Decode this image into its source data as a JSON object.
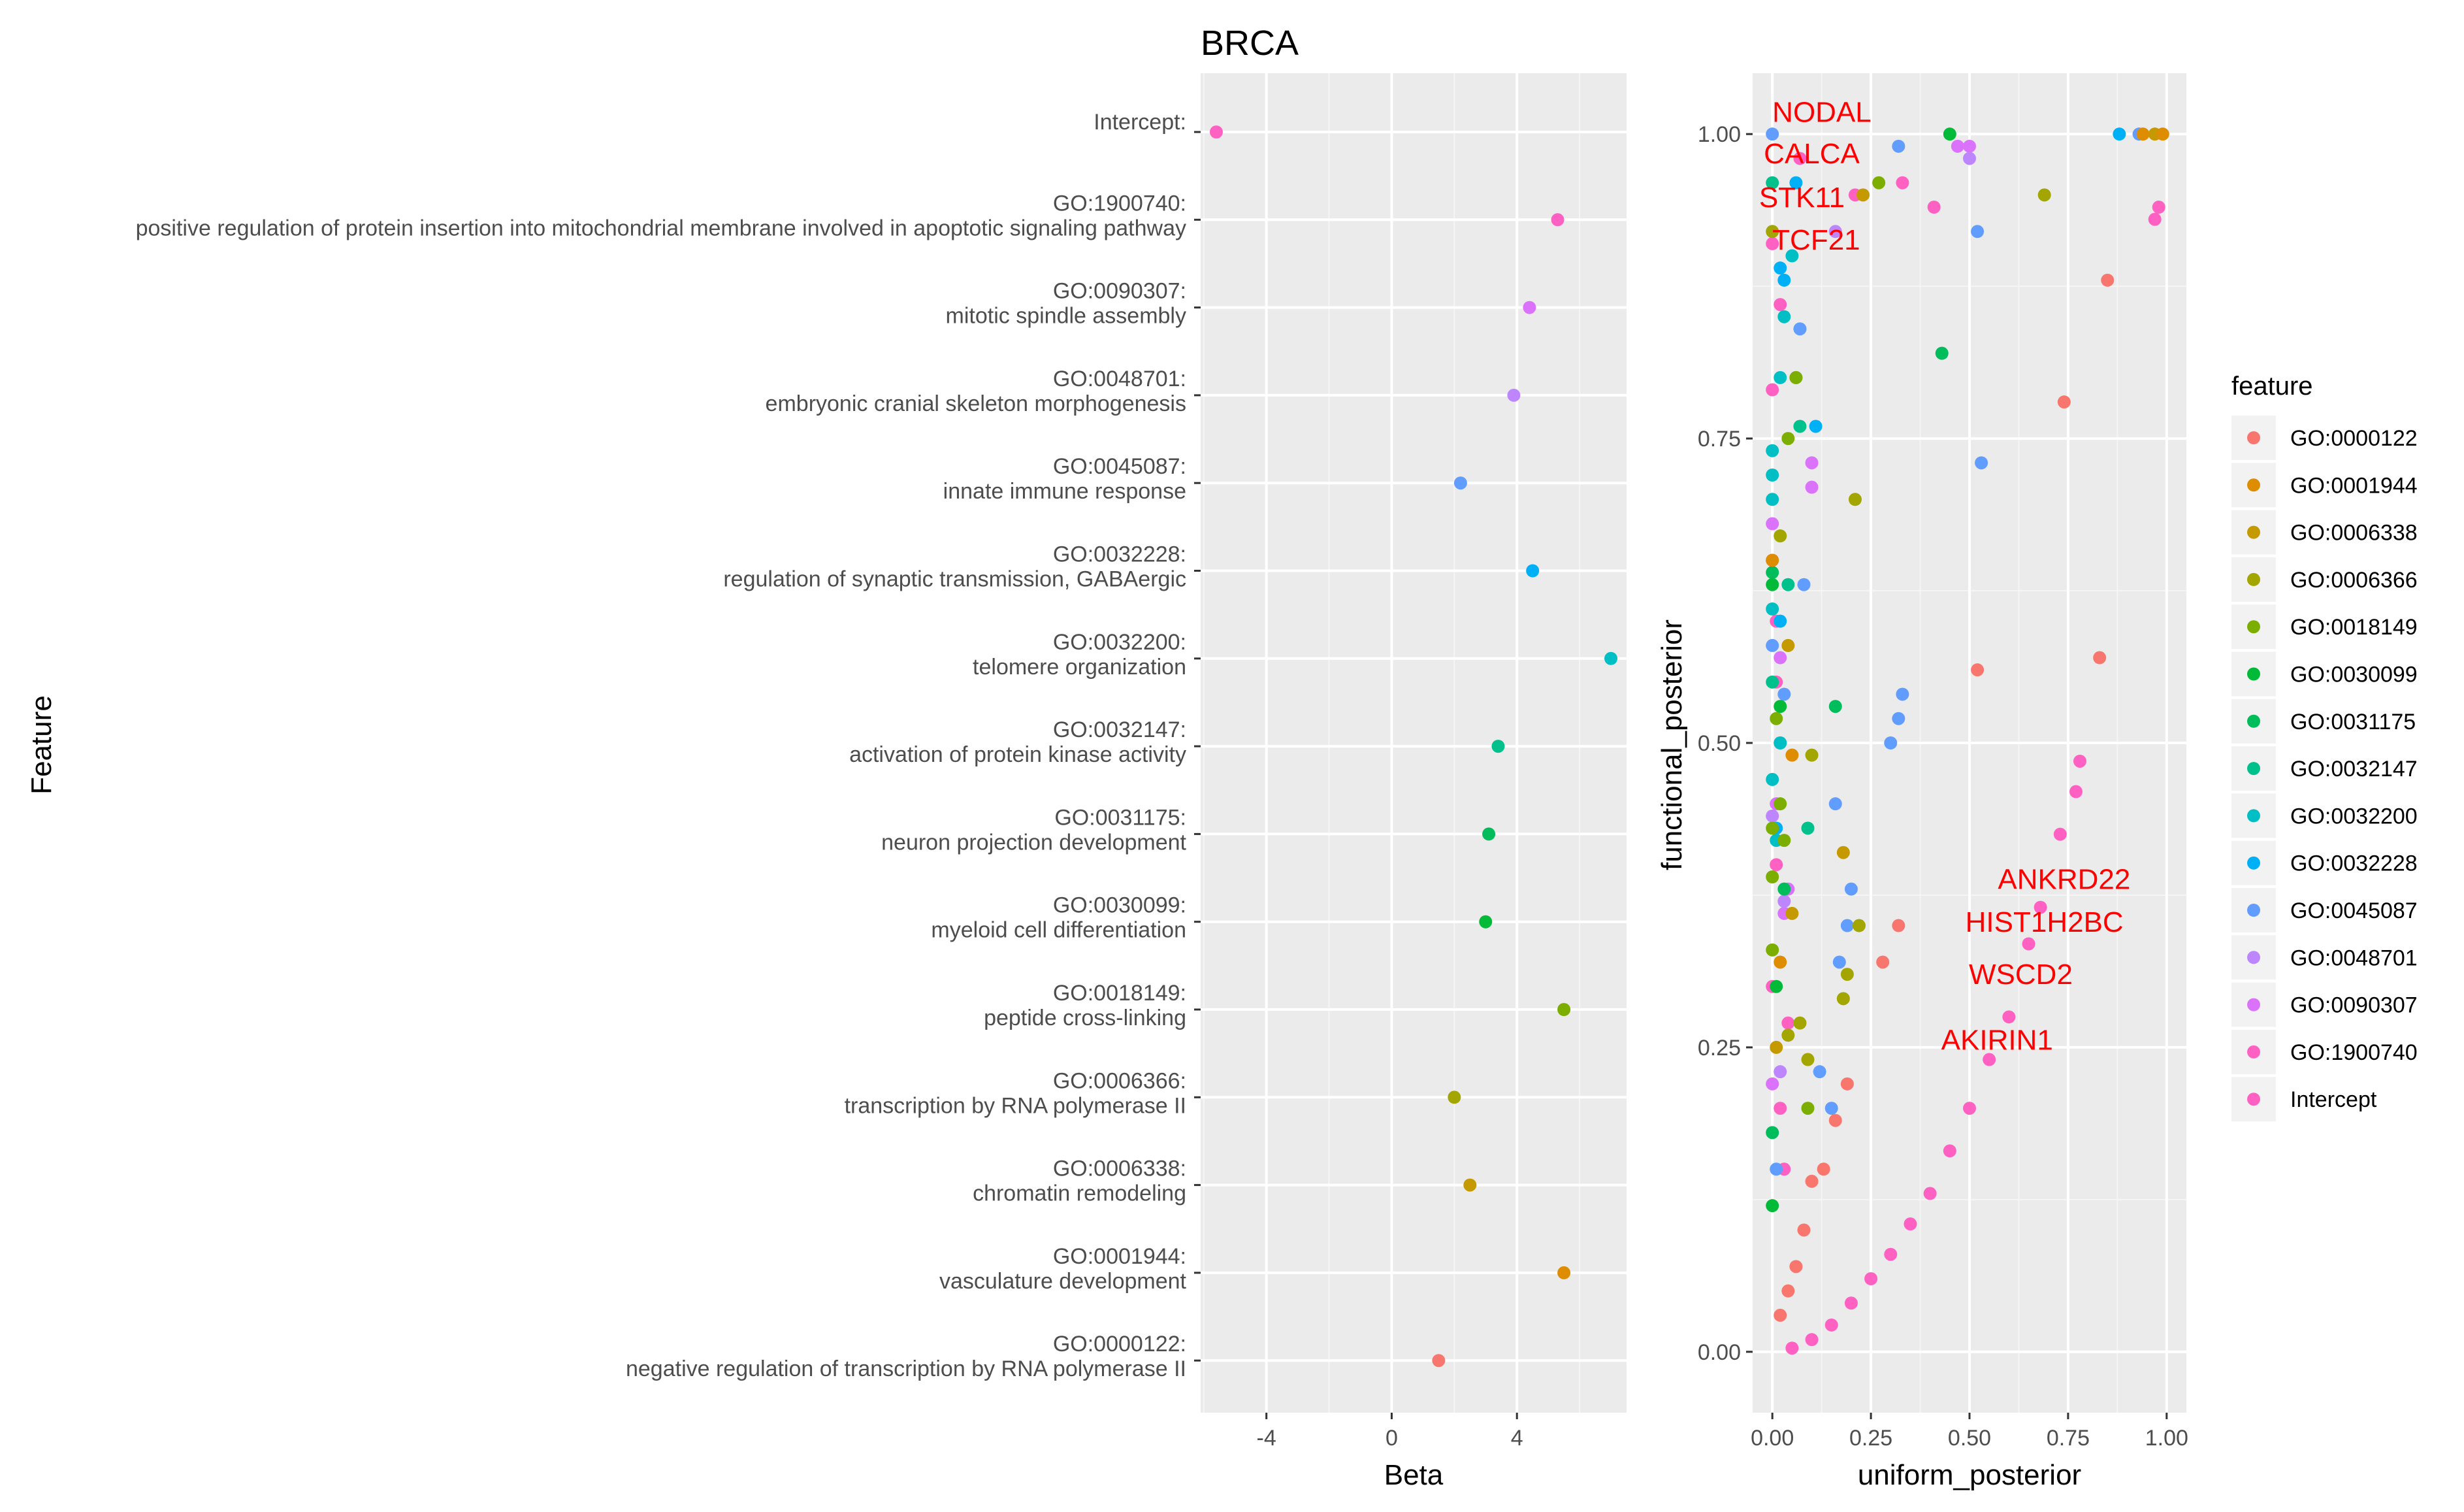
{
  "chart_data": [
    {
      "type": "scatter",
      "title": "BRCA",
      "xlabel": "Beta",
      "ylabel": "Feature",
      "xlim": [
        -6.1,
        7.5
      ],
      "x_ticks": [
        "-4",
        "0",
        "4"
      ],
      "features": [
        {
          "id": "Intercept:",
          "description": "",
          "beta": -5.6,
          "color": "#FF61C3"
        },
        {
          "id": "GO:1900740:",
          "description": "positive regulation of protein insertion into mitochondrial membrane involved in apoptotic signaling pathway",
          "beta": 5.3,
          "color": "#FF61C3"
        },
        {
          "id": "GO:0090307:",
          "description": "mitotic spindle assembly",
          "beta": 4.4,
          "color": "#DB72FB"
        },
        {
          "id": "GO:0048701:",
          "description": "embryonic cranial skeleton morphogenesis",
          "beta": 3.9,
          "color": "#BD86FF"
        },
        {
          "id": "GO:0045087:",
          "description": "innate immune response",
          "beta": 2.2,
          "color": "#619CFF"
        },
        {
          "id": "GO:0032228:",
          "description": "regulation of synaptic transmission, GABAergic",
          "beta": 4.5,
          "color": "#00B0F6"
        },
        {
          "id": "GO:0032200:",
          "description": "telomere organization",
          "beta": 7.0,
          "color": "#00BFC4"
        },
        {
          "id": "GO:0032147:",
          "description": "activation of protein kinase activity",
          "beta": 3.4,
          "color": "#00C08B"
        },
        {
          "id": "GO:0031175:",
          "description": "neuron projection development",
          "beta": 3.1,
          "color": "#00BD5C"
        },
        {
          "id": "GO:0030099:",
          "description": "myeloid cell differentiation",
          "beta": 3.0,
          "color": "#00BA38"
        },
        {
          "id": "GO:0018149:",
          "description": "peptide cross-linking",
          "beta": 5.5,
          "color": "#7CAE00"
        },
        {
          "id": "GO:0006366:",
          "description": "transcription by RNA polymerase II",
          "beta": 2.0,
          "color": "#A3A500"
        },
        {
          "id": "GO:0006338:",
          "description": "chromatin remodeling",
          "beta": 2.5,
          "color": "#C49A00"
        },
        {
          "id": "GO:0001944:",
          "description": "vasculature development",
          "beta": 5.5,
          "color": "#DE8C00"
        },
        {
          "id": "GO:0000122:",
          "description": "negative regulation of transcription by RNA polymerase II",
          "beta": 1.5,
          "color": "#F8766D"
        }
      ]
    },
    {
      "type": "scatter",
      "xlabel": "uniform_posterior",
      "ylabel": "functional_posterior",
      "xlim": [
        -0.05,
        1.05
      ],
      "ylim": [
        -0.05,
        1.05
      ],
      "x_ticks": [
        "0.00",
        "0.25",
        "0.50",
        "0.75",
        "1.00"
      ],
      "y_ticks": [
        "0.00",
        "0.25",
        "0.50",
        "0.75",
        "1.00"
      ],
      "legend": {
        "title": "feature",
        "position": "right",
        "items": [
          {
            "label": "GO:0000122",
            "color": "#F8766D"
          },
          {
            "label": "GO:0001944",
            "color": "#DE8C00"
          },
          {
            "label": "GO:0006338",
            "color": "#C49A00"
          },
          {
            "label": "GO:0006366",
            "color": "#A3A500"
          },
          {
            "label": "GO:0018149",
            "color": "#7CAE00"
          },
          {
            "label": "GO:0030099",
            "color": "#00BA38"
          },
          {
            "label": "GO:0031175",
            "color": "#00BD5C"
          },
          {
            "label": "GO:0032147",
            "color": "#00C08B"
          },
          {
            "label": "GO:0032200",
            "color": "#00BFC4"
          },
          {
            "label": "GO:0032228",
            "color": "#00B0F6"
          },
          {
            "label": "GO:0045087",
            "color": "#619CFF"
          },
          {
            "label": "GO:0048701",
            "color": "#BD86FF"
          },
          {
            "label": "GO:0090307",
            "color": "#DB72FB"
          },
          {
            "label": "GO:1900740",
            "color": "#FF61C3"
          },
          {
            "label": "Intercept",
            "color": "#FF61C3"
          }
        ]
      },
      "annotations": [
        {
          "text": "NODAL",
          "x": 0.0,
          "y": 1.01
        },
        {
          "text": "CALCA",
          "x": 0.1,
          "y": 0.976
        },
        {
          "text": "STK11",
          "x": 0.075,
          "y": 0.94
        },
        {
          "text": "TCF21",
          "x": 0.0,
          "y": 0.905
        },
        {
          "text": "ANKRD22",
          "x": 0.74,
          "y": 0.38
        },
        {
          "text": "HIST1H2BC",
          "x": 0.69,
          "y": 0.345
        },
        {
          "text": "WSCD2",
          "x": 0.63,
          "y": 0.302
        },
        {
          "text": "AKIRIN1",
          "x": 0.57,
          "y": 0.248
        }
      ],
      "points": [
        {
          "f": "Intercept",
          "pts": [
            [
              0.05,
              0.003
            ],
            [
              0.1,
              0.01
            ],
            [
              0.15,
              0.022
            ],
            [
              0.2,
              0.04
            ],
            [
              0.25,
              0.06
            ],
            [
              0.3,
              0.08
            ],
            [
              0.35,
              0.105
            ],
            [
              0.4,
              0.13
            ],
            [
              0.45,
              0.165
            ],
            [
              0.5,
              0.2
            ],
            [
              0.55,
              0.24
            ],
            [
              0.6,
              0.275
            ],
            [
              0.65,
              0.335
            ],
            [
              0.68,
              0.365
            ],
            [
              0.73,
              0.425
            ],
            [
              0.77,
              0.46
            ],
            [
              0.78,
              0.485
            ]
          ]
        },
        {
          "f": "GO:1900740",
          "pts": [
            [
              0.97,
              0.93
            ],
            [
              0.98,
              0.94
            ],
            [
              0.21,
              0.95
            ],
            [
              0.33,
              0.96
            ],
            [
              0.41,
              0.94
            ],
            [
              0.07,
              0.98
            ],
            [
              0.0,
              0.91
            ],
            [
              0.02,
              0.86
            ],
            [
              0.0,
              0.79
            ],
            [
              0.01,
              0.6
            ],
            [
              0.02,
              0.5
            ],
            [
              0.01,
              0.4
            ],
            [
              0.0,
              0.3
            ],
            [
              0.02,
              0.2
            ],
            [
              0.04,
              0.27
            ],
            [
              0.0,
              0.65
            ],
            [
              0.03,
              0.15
            ],
            [
              0.01,
              0.55
            ]
          ]
        },
        {
          "f": "GO:0090307",
          "pts": [
            [
              0.47,
              0.99
            ],
            [
              0.5,
              0.99
            ],
            [
              0.0,
              0.68
            ],
            [
              0.1,
              0.73
            ],
            [
              0.1,
              0.71
            ],
            [
              0.02,
              0.57
            ],
            [
              0.04,
              0.38
            ],
            [
              0.01,
              0.45
            ],
            [
              0.03,
              0.36
            ],
            [
              0.0,
              0.22
            ]
          ]
        },
        {
          "f": "GO:0048701",
          "pts": [
            [
              0.5,
              0.98
            ],
            [
              0.16,
              0.92
            ],
            [
              0.03,
              0.37
            ],
            [
              0.0,
              0.44
            ],
            [
              0.02,
              0.23
            ]
          ]
        },
        {
          "f": "GO:0045087",
          "pts": [
            [
              0.93,
              1.0
            ],
            [
              0.52,
              0.92
            ],
            [
              0.53,
              0.73
            ],
            [
              0.33,
              0.54
            ],
            [
              0.32,
              0.52
            ],
            [
              0.3,
              0.5
            ],
            [
              0.0,
              1.0
            ],
            [
              0.32,
              0.99
            ],
            [
              0.06,
              0.8
            ],
            [
              0.07,
              0.84
            ],
            [
              0.16,
              0.45
            ],
            [
              0.19,
              0.35
            ],
            [
              0.17,
              0.32
            ],
            [
              0.2,
              0.38
            ],
            [
              0.08,
              0.63
            ],
            [
              0.0,
              0.58
            ],
            [
              0.12,
              0.23
            ],
            [
              0.15,
              0.2
            ],
            [
              0.03,
              0.54
            ],
            [
              0.01,
              0.15
            ]
          ]
        },
        {
          "f": "GO:0032228",
          "pts": [
            [
              0.88,
              1.0
            ],
            [
              0.06,
              0.96
            ],
            [
              0.02,
              0.89
            ],
            [
              0.03,
              0.88
            ],
            [
              0.11,
              0.76
            ],
            [
              0.02,
              0.6
            ],
            [
              0.01,
              0.43
            ]
          ]
        },
        {
          "f": "GO:0032200",
          "pts": [
            [
              0.03,
              0.85
            ],
            [
              0.02,
              0.8
            ],
            [
              0.0,
              0.74
            ],
            [
              0.0,
              0.72
            ],
            [
              0.0,
              0.7
            ],
            [
              0.02,
              0.5
            ],
            [
              0.0,
              0.47
            ],
            [
              0.01,
              0.42
            ],
            [
              0.05,
              0.9
            ],
            [
              0.0,
              0.61
            ]
          ]
        },
        {
          "f": "GO:0032147",
          "pts": [
            [
              0.0,
              0.96
            ],
            [
              0.07,
              0.76
            ],
            [
              0.09,
              0.43
            ],
            [
              0.04,
              0.63
            ],
            [
              0.0,
              0.55
            ]
          ]
        },
        {
          "f": "GO:0031175",
          "pts": [
            [
              0.43,
              0.82
            ],
            [
              0.16,
              0.53
            ],
            [
              0.0,
              0.64
            ],
            [
              0.03,
              0.38
            ],
            [
              0.0,
              0.18
            ]
          ]
        },
        {
          "f": "GO:0030099",
          "pts": [
            [
              0.45,
              1.0
            ],
            [
              0.0,
              0.63
            ],
            [
              0.02,
              0.53
            ],
            [
              0.01,
              0.3
            ],
            [
              0.0,
              0.12
            ]
          ]
        },
        {
          "f": "GO:0018149",
          "pts": [
            [
              0.27,
              0.96
            ],
            [
              0.06,
              0.8
            ],
            [
              0.04,
              0.75
            ],
            [
              0.01,
              0.52
            ],
            [
              0.03,
              0.42
            ],
            [
              0.0,
              0.43
            ],
            [
              0.0,
              0.39
            ],
            [
              0.09,
              0.2
            ],
            [
              0.0,
              0.33
            ],
            [
              0.02,
              0.45
            ]
          ]
        },
        {
          "f": "GO:0006366",
          "pts": [
            [
              0.69,
              0.95
            ],
            [
              0.21,
              0.7
            ],
            [
              0.1,
              0.49
            ],
            [
              0.18,
              0.29
            ],
            [
              0.22,
              0.35
            ],
            [
              0.19,
              0.31
            ],
            [
              0.02,
              0.67
            ],
            [
              0.0,
              0.92
            ],
            [
              0.07,
              0.27
            ],
            [
              0.09,
              0.24
            ],
            [
              0.04,
              0.26
            ]
          ]
        },
        {
          "f": "GO:0006338",
          "pts": [
            [
              0.97,
              1.0
            ],
            [
              0.23,
              0.95
            ],
            [
              0.18,
              0.41
            ],
            [
              0.05,
              0.36
            ],
            [
              0.04,
              0.58
            ],
            [
              0.01,
              0.25
            ]
          ]
        },
        {
          "f": "GO:0001944",
          "pts": [
            [
              0.94,
              1.0
            ],
            [
              0.99,
              1.0
            ],
            [
              0.0,
              0.65
            ],
            [
              0.05,
              0.49
            ],
            [
              0.02,
              0.32
            ]
          ]
        },
        {
          "f": "GO:0000122",
          "pts": [
            [
              0.85,
              0.88
            ],
            [
              0.74,
              0.78
            ],
            [
              0.83,
              0.57
            ],
            [
              0.52,
              0.56
            ],
            [
              0.32,
              0.35
            ],
            [
              0.28,
              0.32
            ],
            [
              0.19,
              0.22
            ],
            [
              0.16,
              0.19
            ],
            [
              0.1,
              0.14
            ],
            [
              0.13,
              0.15
            ],
            [
              0.08,
              0.1
            ],
            [
              0.06,
              0.07
            ],
            [
              0.04,
              0.05
            ],
            [
              0.02,
              0.03
            ]
          ]
        }
      ]
    }
  ]
}
